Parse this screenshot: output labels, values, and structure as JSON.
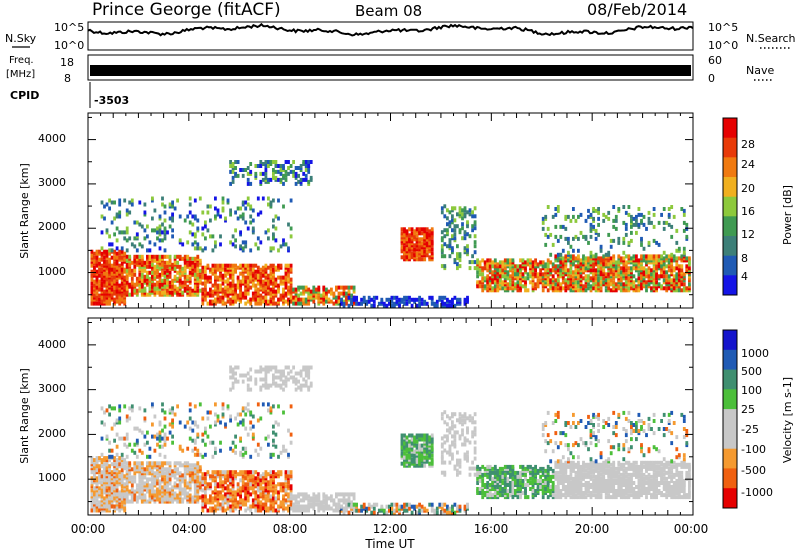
{
  "header": {
    "station": "Prince George (fitACF)",
    "beam": "Beam 08",
    "date": "08/Feb/2014"
  },
  "params": {
    "nsky_label": "N.Sky",
    "nsky_ticks": [
      "10^5",
      "10^0"
    ],
    "nsearch_label": "N.Search",
    "nsearch_ticks": [
      "10^5",
      "10^0"
    ],
    "freq_label_1": "Freq.",
    "freq_label_2": "[MHz]",
    "freq_ticks": [
      "18",
      "8"
    ],
    "nave_label": "Nave",
    "nave_ticks": [
      "60",
      "0"
    ],
    "cpid_label": "CPID",
    "cpid_value": "-3503"
  },
  "colors": {
    "power": [
      "#1414e6",
      "#1f5ab4",
      "#3c7f78",
      "#3f9a52",
      "#8dc93c",
      "#f0b020",
      "#f07a10",
      "#e83a08",
      "#e60000"
    ],
    "velocity": [
      "#e60000",
      "#f06010",
      "#f59a30",
      "#c8c8c8",
      "#c8c8c8",
      "#4cbf3a",
      "#3f8f70",
      "#1f5ab4",
      "#1414cc"
    ]
  },
  "chart_data": [
    {
      "type": "heatmap",
      "name": "power",
      "ylabel": "Slant Range [km]",
      "yticks": [
        "1000",
        "2000",
        "3000",
        "4000"
      ],
      "ylim": [
        200,
        4600
      ],
      "xticks": [
        "00:00",
        "04:00",
        "08:00",
        "12:00",
        "16:00",
        "20:00",
        "00:00"
      ],
      "xlim_hours": [
        0,
        24
      ],
      "colorbar": {
        "label": "Power [dB]",
        "ticks": [
          "28",
          "24",
          "20",
          "16",
          "12",
          "8",
          "4"
        ],
        "range": [
          0,
          30
        ]
      }
    },
    {
      "type": "heatmap",
      "name": "velocity",
      "ylabel": "Slant Range [km]",
      "yticks": [
        "1000",
        "2000",
        "3000",
        "4000"
      ],
      "ylim": [
        200,
        4600
      ],
      "xticks": [
        "00:00",
        "04:00",
        "08:00",
        "12:00",
        "16:00",
        "20:00",
        "00:00"
      ],
      "xlabel": "Time UT",
      "xlim_hours": [
        0,
        24
      ],
      "colorbar": {
        "label": "Velocity [m s-1]",
        "ticks": [
          "1000",
          "500",
          "100",
          "25",
          "-25",
          "-100",
          "-500",
          "-1000"
        ]
      }
    }
  ]
}
